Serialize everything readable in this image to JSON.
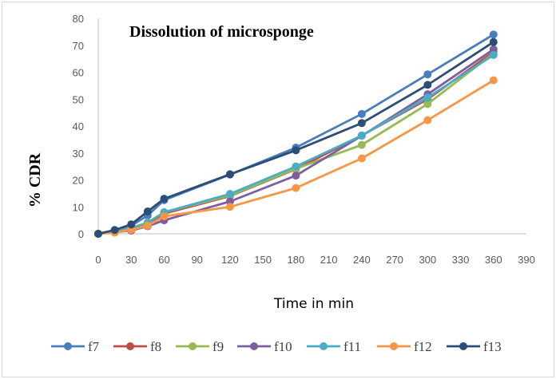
{
  "chart_data": {
    "type": "line",
    "title": "Dissolution of microsponge",
    "xlabel": "Time in min",
    "ylabel": "% CDR",
    "xlim": [
      0,
      390
    ],
    "ylim": [
      0,
      80
    ],
    "xticks": [
      0,
      30,
      60,
      90,
      120,
      150,
      180,
      210,
      240,
      270,
      300,
      330,
      360,
      390
    ],
    "yticks": [
      0,
      10,
      20,
      30,
      40,
      50,
      60,
      70,
      80
    ],
    "grid": "horizontal-none",
    "legend_position": "bottom",
    "x": [
      0,
      15,
      30,
      45,
      60,
      120,
      180,
      240,
      300,
      360
    ],
    "series": [
      {
        "name": "f7",
        "color": "#4a7ebb",
        "values": [
          0,
          1.2,
          3.0,
          6.8,
          12.5,
          22.0,
          32.0,
          44.5,
          59.2,
          74.0
        ]
      },
      {
        "name": "f8",
        "color": "#be4b48",
        "values": [
          0,
          0.8,
          2.0,
          3.8,
          7.5,
          14.0,
          24.0,
          36.5,
          50.0,
          67.5
        ]
      },
      {
        "name": "f9",
        "color": "#98b954",
        "values": [
          0,
          0.8,
          2.2,
          4.2,
          8.0,
          14.2,
          24.2,
          33.0,
          48.2,
          67.0
        ]
      },
      {
        "name": "f10",
        "color": "#7d5fa0",
        "values": [
          0,
          0.6,
          1.2,
          2.8,
          5.0,
          12.0,
          21.6,
          36.4,
          51.8,
          68.5
        ]
      },
      {
        "name": "f11",
        "color": "#4bacc6",
        "values": [
          0,
          0.8,
          2.0,
          4.0,
          8.0,
          14.8,
          25.0,
          36.5,
          50.6,
          66.4
        ]
      },
      {
        "name": "f12",
        "color": "#f79646",
        "values": [
          0,
          0.4,
          1.5,
          3.0,
          6.5,
          10.0,
          17.0,
          28.0,
          42.2,
          57.0
        ]
      },
      {
        "name": "f13",
        "color": "#2c4d75",
        "values": [
          0,
          1.4,
          3.5,
          8.3,
          13.0,
          22.1,
          31.0,
          41.1,
          55.3,
          71.2
        ]
      }
    ]
  }
}
